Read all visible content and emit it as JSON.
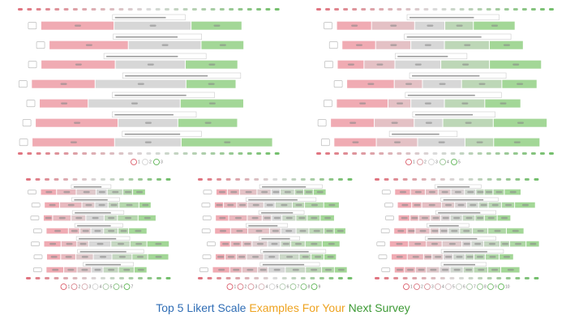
{
  "title": [
    {
      "text": "Top 5 Likert Scale",
      "color": "#2f6db5"
    },
    {
      "text": "Examples For Your",
      "color": "#eea320"
    },
    {
      "text": "Next Survey",
      "color": "#3d9a35"
    }
  ],
  "panels": [
    {
      "legend": [
        1,
        2,
        3
      ]
    },
    {
      "legend": [
        1,
        2,
        3,
        4,
        5
      ]
    },
    {
      "legend": [
        1,
        2,
        3,
        4,
        5,
        6,
        7
      ]
    },
    {
      "legend": [
        1,
        2,
        3,
        4,
        5,
        6,
        7,
        8,
        9
      ]
    },
    {
      "legend": [
        1,
        2,
        3,
        4,
        5,
        6,
        7,
        8,
        9,
        10
      ]
    }
  ]
}
